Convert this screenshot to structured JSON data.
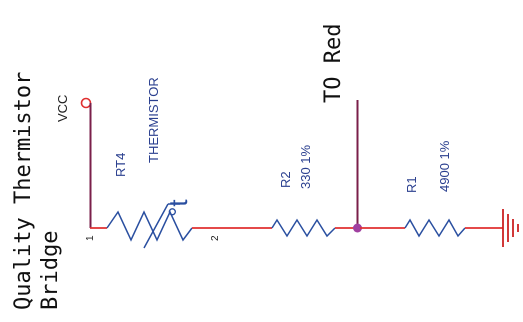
{
  "title": {
    "line1": "Quality Thermistor",
    "line2": "Bridge"
  },
  "vcc_label": "VCC",
  "to_red_label": "TO Red",
  "thermistor": {
    "ref": "RT4",
    "value": "THERMISTOR",
    "symbol": "°t",
    "pin1": "1",
    "pin2": "2"
  },
  "r2": {
    "ref": "R2",
    "value": "330 1%"
  },
  "r1": {
    "ref": "R1",
    "value": "4900 1%"
  },
  "colors": {
    "wire": "#e03030",
    "component": "#2a4fa0",
    "label_blue": "#2a3f8f",
    "ground": "#cc2222",
    "junction": "#a040a0",
    "probe_wire": "#7a1f4a",
    "text": "#111111"
  }
}
